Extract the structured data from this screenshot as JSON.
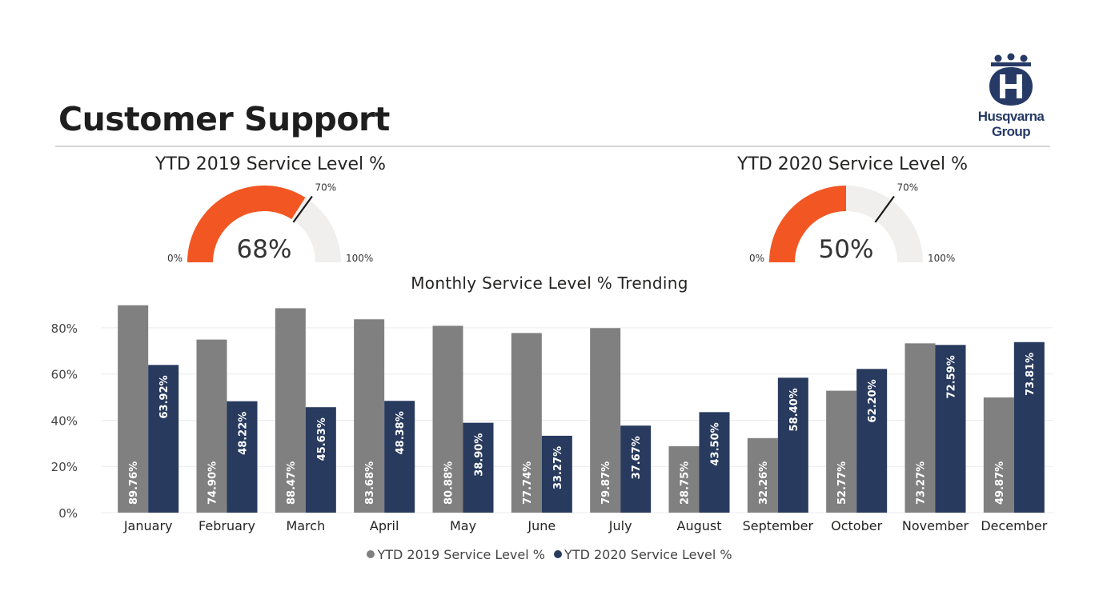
{
  "header": {
    "title": "Customer Support",
    "logo": {
      "icon": "husqvarna-crown-h-icon",
      "line1": "Husqvarna",
      "line2": "Group",
      "color": "#273a66"
    }
  },
  "gauges": [
    {
      "title": "YTD 2019 Service Level %",
      "value": 68,
      "value_label": "68%",
      "min_label": "0%",
      "max_label": "100%",
      "target": 70,
      "target_label": "70%",
      "fill_color": "#f25623",
      "track_color": "#f0efed"
    },
    {
      "title": "YTD 2020 Service Level %",
      "value": 50,
      "value_label": "50%",
      "min_label": "0%",
      "max_label": "100%",
      "target": 70,
      "target_label": "70%",
      "fill_color": "#f25623",
      "track_color": "#f0efed"
    }
  ],
  "chart_data": {
    "type": "bar",
    "title": "Monthly Service Level % Trending",
    "categories": [
      "January",
      "February",
      "March",
      "April",
      "May",
      "June",
      "July",
      "August",
      "September",
      "October",
      "November",
      "December"
    ],
    "series": [
      {
        "name": "YTD 2019 Service Level %",
        "color": "#808080",
        "values": [
          89.76,
          74.9,
          88.47,
          83.68,
          80.88,
          77.74,
          79.87,
          28.75,
          32.26,
          52.77,
          73.27,
          49.87
        ],
        "labels": [
          "89.76%",
          "74.90%",
          "88.47%",
          "83.68%",
          "80.88%",
          "77.74%",
          "79.87%",
          "28.75%",
          "32.26%",
          "52.77%",
          "73.27%",
          "49.87%"
        ]
      },
      {
        "name": "YTD 2020 Service Level %",
        "color": "#283a5e",
        "values": [
          63.92,
          48.22,
          45.63,
          48.38,
          38.9,
          33.27,
          37.67,
          43.5,
          58.4,
          62.2,
          72.59,
          73.81
        ],
        "labels": [
          "63.92%",
          "48.22%",
          "45.63%",
          "48.38%",
          "38.90%",
          "33.27%",
          "37.67%",
          "43.50%",
          "58.40%",
          "62.20%",
          "72.59%",
          "73.81%"
        ]
      }
    ],
    "y_ticks": [
      0,
      20,
      40,
      60,
      80
    ],
    "y_tick_labels": [
      "0%",
      "20%",
      "40%",
      "60%",
      "80%"
    ],
    "ylim": [
      0,
      90
    ],
    "grid": true,
    "legend_position": "bottom-center"
  }
}
